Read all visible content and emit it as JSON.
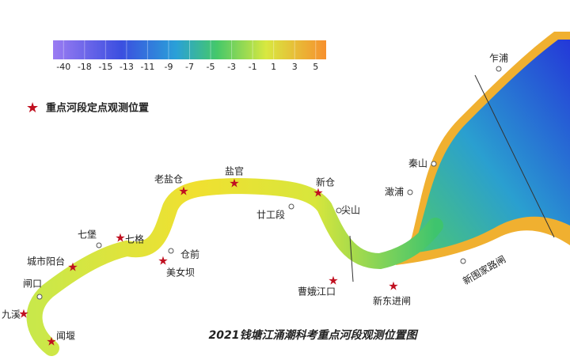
{
  "colorbar": {
    "ticks": [
      -40,
      -18,
      -15,
      -13,
      -11,
      -9,
      -7,
      -5,
      -3,
      -1,
      1,
      3,
      5
    ]
  },
  "legend": {
    "label": "重点河段定点观测位置"
  },
  "places": [
    "乍浦",
    "秦山",
    "澉浦",
    "新仓",
    "尖山",
    "廿工段",
    "盐官",
    "老盐仓",
    "仓前",
    "美女坝",
    "七格",
    "七堡",
    "城市阳台",
    "闸口",
    "九溪",
    "闻堰",
    "曹娥江口",
    "新东进闸",
    "新围家路闸"
  ],
  "title": "2021钱塘江涌潮科考重点河段观测位置图"
}
